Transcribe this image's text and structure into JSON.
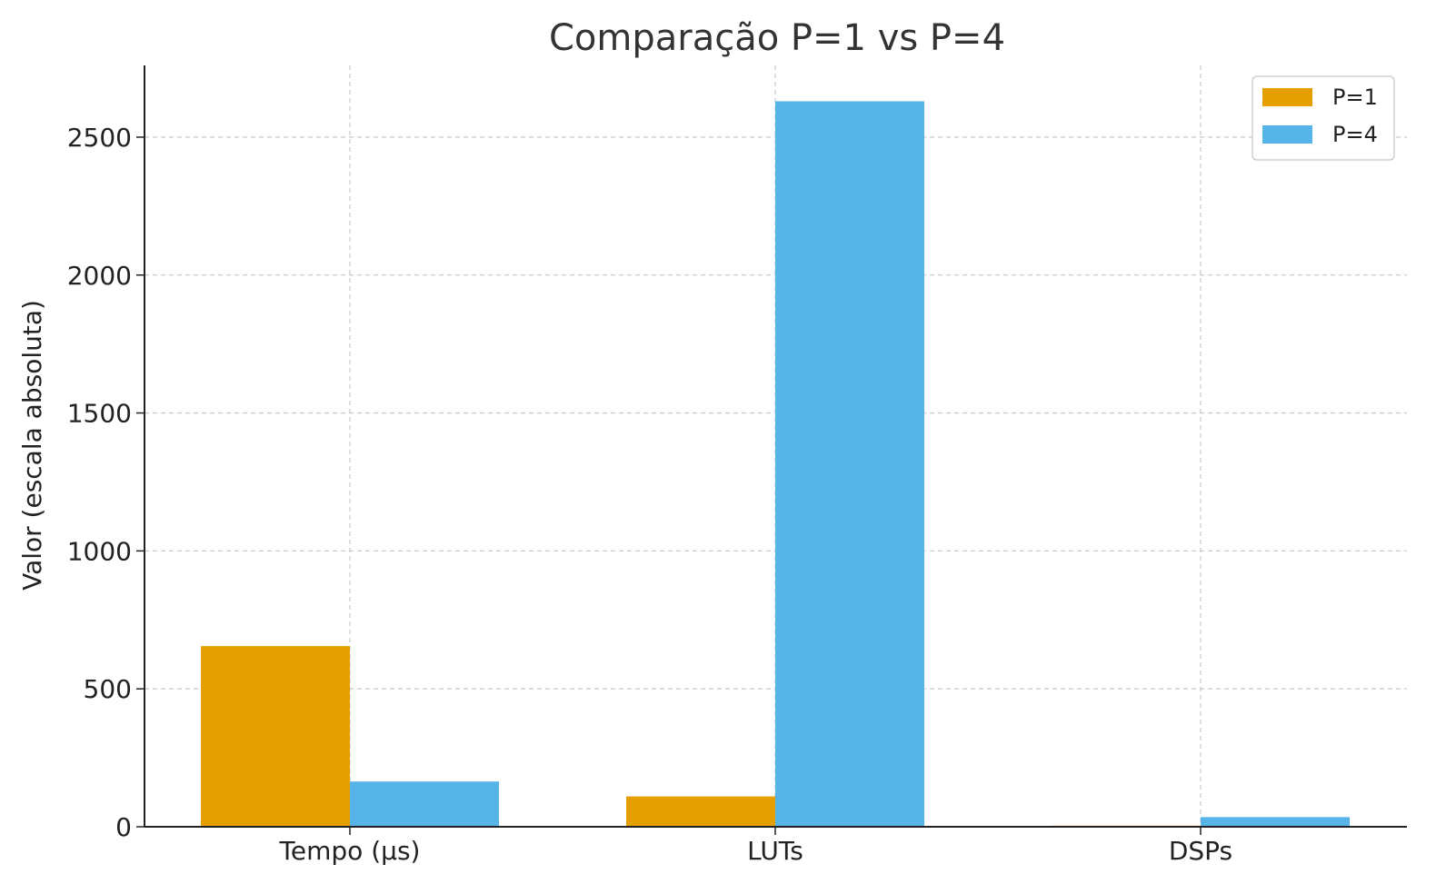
{
  "chart_data": {
    "type": "bar",
    "title": "Comparação P=1 vs P=4",
    "xlabel": "",
    "ylabel": "Valor (escala absoluta)",
    "categories": [
      "Tempo (µs)",
      "LUTs",
      "DSPs"
    ],
    "series": [
      {
        "name": "P=1",
        "color": "#E69F00",
        "values": [
          655,
          110,
          4
        ]
      },
      {
        "name": "P=4",
        "color": "#56B4E9",
        "values": [
          164,
          2630,
          35
        ]
      }
    ],
    "ylim": [
      0,
      2760
    ],
    "yticks": [
      0,
      500,
      1000,
      1500,
      2000,
      2500
    ],
    "grid": true,
    "legend_position": "top-right"
  }
}
